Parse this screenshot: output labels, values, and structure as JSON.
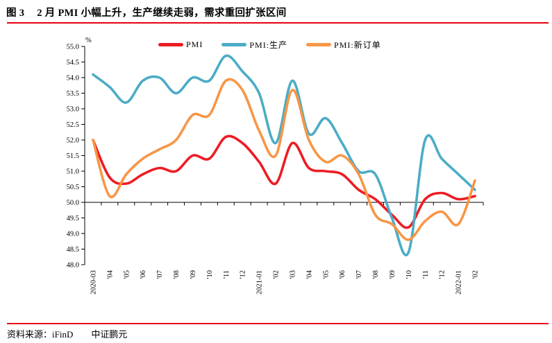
{
  "header": {
    "figure_label": "图 3",
    "title": "2 月 PMI 小幅上升，生产继续走弱，需求重回扩张区间"
  },
  "chart_data": {
    "type": "line",
    "smoothed": true,
    "grid": false,
    "unit_label": "%",
    "legend_position": "top",
    "ylim": [
      48.0,
      55.0
    ],
    "ytick_step": 0.5,
    "x_axis_cross_at": 50.0,
    "categories": [
      "2020-03",
      "'04",
      "'05",
      "'06",
      "'07",
      "'08",
      "'09",
      "'10",
      "'11",
      "'12",
      "2021-01",
      "'02",
      "'03",
      "'04",
      "'05",
      "'06",
      "'07",
      "'08",
      "'09",
      "'10",
      "'11",
      "'12",
      "2022-01",
      "'02"
    ],
    "series": [
      {
        "name": "PMI",
        "color": "#ed1c24",
        "values": [
          52.0,
          50.8,
          50.6,
          50.9,
          51.1,
          51.0,
          51.5,
          51.4,
          52.1,
          51.9,
          51.3,
          50.6,
          51.9,
          51.1,
          51.0,
          50.9,
          50.4,
          50.1,
          49.6,
          49.2,
          50.1,
          50.3,
          50.1,
          50.2
        ]
      },
      {
        "name": "PMI:生产",
        "color": "#4bacc6",
        "values": [
          54.1,
          53.7,
          53.2,
          53.9,
          54.0,
          53.5,
          54.0,
          53.9,
          54.7,
          54.2,
          53.5,
          51.9,
          53.9,
          52.2,
          52.7,
          51.9,
          51.0,
          50.9,
          49.5,
          48.4,
          52.0,
          51.4,
          50.9,
          50.4
        ]
      },
      {
        "name": "PMI:新订单",
        "color": "#f79646",
        "values": [
          52.0,
          50.2,
          50.9,
          51.4,
          51.7,
          52.0,
          52.8,
          52.8,
          53.9,
          53.6,
          52.3,
          51.5,
          53.6,
          52.0,
          51.3,
          51.5,
          50.9,
          49.6,
          49.3,
          48.8,
          49.4,
          49.7,
          49.3,
          50.7
        ]
      }
    ]
  },
  "footer": {
    "source": "资料来源：iFinD",
    "brand": "中证鹏元"
  },
  "colors": {
    "divider": "#e60012",
    "axis": "#000000",
    "background": "#ffffff"
  }
}
